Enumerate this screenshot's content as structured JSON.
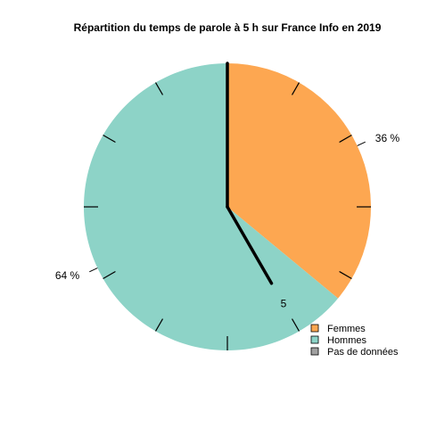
{
  "chart_data": {
    "type": "pie",
    "title": "Répartition du temps de parole à 5 h sur France Info en 2019",
    "start": "12 o'clock",
    "direction": "clockwise",
    "slices": [
      {
        "name": "Femmes",
        "value": 36,
        "label": "36 %",
        "color": "#fda751"
      },
      {
        "name": "Hommes",
        "value": 64,
        "label": "64 %",
        "color": "#8dd3c7"
      }
    ],
    "legend": {
      "position": "bottom-right",
      "entries": [
        {
          "name": "Femmes",
          "color": "#fda751"
        },
        {
          "name": "Hommes",
          "color": "#8dd3c7"
        },
        {
          "name": "Pas de données",
          "color": "#a0a0a0"
        }
      ]
    },
    "clock": {
      "hours": 12,
      "tick_marks": true,
      "hour_hand": {
        "hour": 5,
        "label": "5"
      },
      "minute_hand": {
        "minute": 0
      }
    }
  }
}
